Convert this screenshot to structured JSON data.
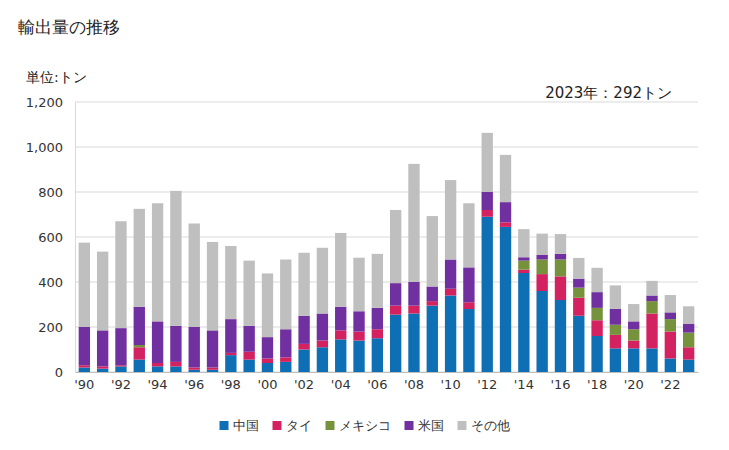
{
  "chart_data": {
    "type": "bar",
    "title": "輸出量の推移",
    "ylabel": "単位:トン",
    "annotations": [
      "2023年：292トン"
    ],
    "stacked": true,
    "grid": true,
    "legend": "bottom",
    "categories": [
      "'90",
      null,
      "'92",
      null,
      "'94",
      null,
      "'96",
      null,
      "'98",
      null,
      "'00",
      null,
      "'02",
      null,
      "'04",
      null,
      "'06",
      null,
      "'08",
      null,
      "'10",
      null,
      "'12",
      null,
      "'14",
      null,
      "'16",
      null,
      "'18",
      null,
      "'20",
      null,
      "'22",
      null
    ],
    "ylim": [
      0,
      1200
    ],
    "yticks": [
      0,
      200,
      400,
      600,
      800,
      {
        "value": 1000,
        "label": "1,000"
      },
      {
        "value": 1200,
        "label": "1,200"
      }
    ],
    "series": [
      {
        "name": "中国",
        "color": "#0f6fb5",
        "values": [
          20,
          15,
          25,
          55,
          25,
          25,
          10,
          10,
          75,
          55,
          40,
          45,
          100,
          110,
          145,
          140,
          150,
          255,
          260,
          295,
          340,
          280,
          690,
          645,
          440,
          360,
          320,
          250,
          160,
          105,
          105,
          105,
          60,
          55
        ]
      },
      {
        "name": "タイ",
        "color": "#d3225f",
        "values": [
          10,
          10,
          5,
          55,
          15,
          20,
          10,
          10,
          10,
          35,
          20,
          20,
          25,
          30,
          40,
          40,
          40,
          40,
          35,
          20,
          30,
          30,
          30,
          20,
          15,
          75,
          105,
          80,
          70,
          60,
          35,
          155,
          120,
          55
        ]
      },
      {
        "name": "メキシコ",
        "color": "#76923c",
        "values": [
          0,
          0,
          0,
          10,
          0,
          0,
          0,
          0,
          0,
          0,
          0,
          0,
          0,
          0,
          0,
          0,
          0,
          0,
          0,
          0,
          0,
          0,
          0,
          0,
          40,
          65,
          75,
          45,
          55,
          45,
          50,
          55,
          55,
          65
        ]
      },
      {
        "name": "米国",
        "color": "#7030a0",
        "values": [
          170,
          160,
          165,
          170,
          185,
          160,
          180,
          165,
          150,
          115,
          95,
          125,
          125,
          120,
          105,
          90,
          95,
          100,
          105,
          65,
          130,
          155,
          80,
          90,
          15,
          20,
          25,
          40,
          70,
          70,
          35,
          25,
          30,
          40
        ]
      },
      {
        "name": "その他",
        "color": "#bfbfbf",
        "values": [
          375,
          350,
          475,
          435,
          525,
          600,
          460,
          393,
          325,
          290,
          283,
          310,
          280,
          292,
          328,
          238,
          240,
          325,
          525,
          313,
          353,
          285,
          263,
          210,
          125,
          95,
          88,
          92,
          108,
          105,
          77,
          65,
          77,
          77
        ]
      }
    ]
  }
}
